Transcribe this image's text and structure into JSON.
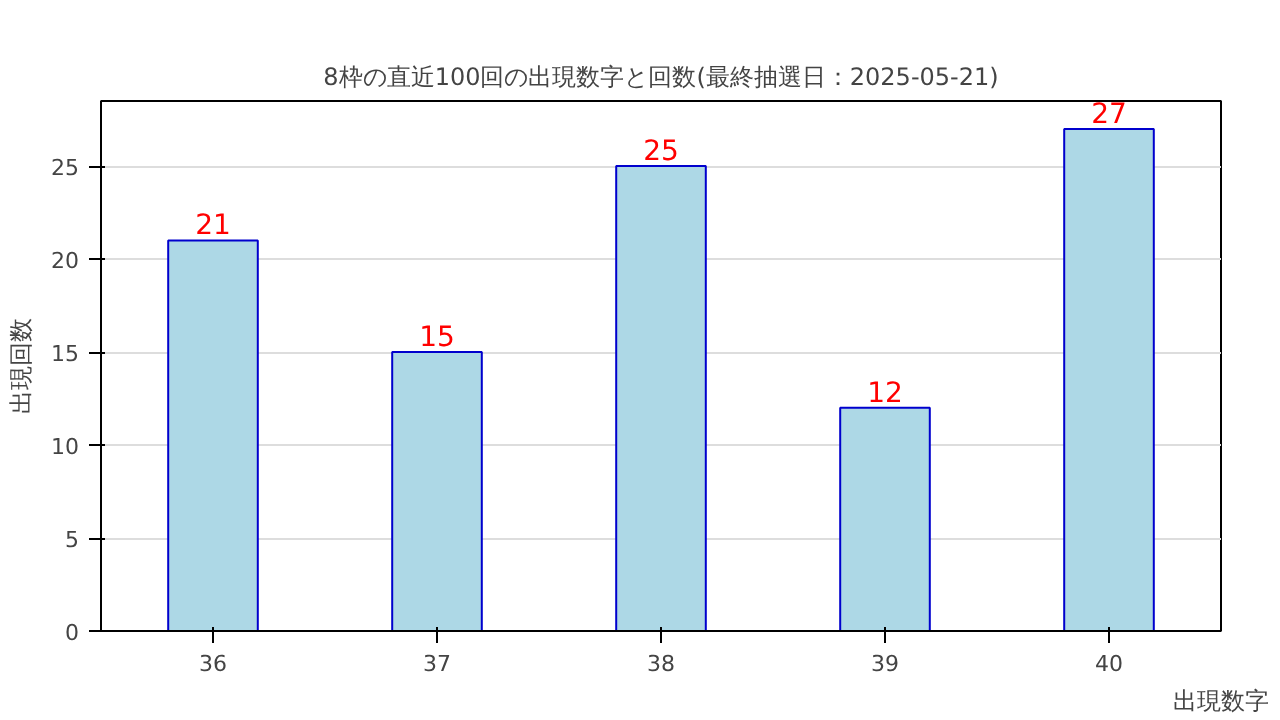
{
  "chart_data": {
    "type": "bar",
    "title": "8枠の直近100回の出現数字と回数(最終抽選日：2025-05-21)",
    "xlabel": "出現数字",
    "ylabel": "出現回数",
    "categories": [
      "36",
      "37",
      "38",
      "39",
      "40"
    ],
    "values": [
      21,
      15,
      25,
      12,
      27
    ],
    "color": "#add8e6",
    "ylim": [
      0,
      28.5
    ],
    "yticks": [
      0,
      5,
      10,
      15,
      20,
      25
    ],
    "grid": "y",
    "data_labels": true
  }
}
